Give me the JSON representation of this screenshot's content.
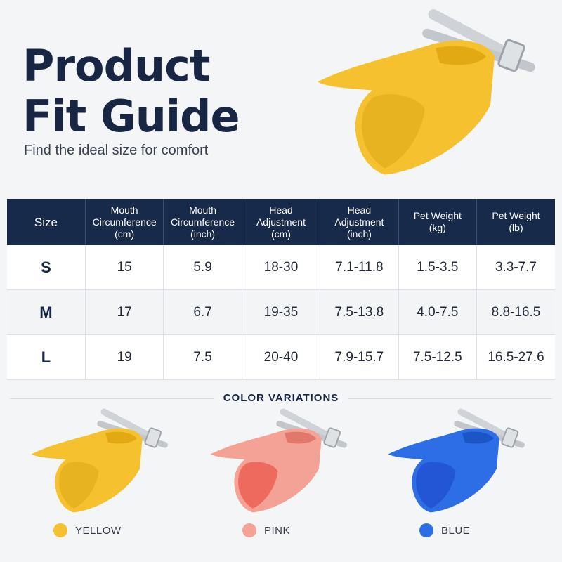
{
  "header": {
    "title_line1": "Product",
    "title_line2": "Fit Guide",
    "subtitle": "Find the ideal size for comfort"
  },
  "table": {
    "headers": [
      [
        "Size"
      ],
      [
        "Mouth",
        "Circumference",
        "(cm)"
      ],
      [
        "Mouth",
        "Circumference",
        "(inch)"
      ],
      [
        "Head",
        "Adjustment",
        "(cm)"
      ],
      [
        "Head",
        "Adjustment",
        "(inch)"
      ],
      [
        "Pet Weight",
        "(kg)"
      ],
      [
        "Pet Weight",
        "(lb)"
      ]
    ],
    "rows": [
      [
        "S",
        "15",
        "5.9",
        "18-30",
        "7.1-11.8",
        "1.5-3.5",
        "3.3-7.7"
      ],
      [
        "M",
        "17",
        "6.7",
        "19-35",
        "7.5-13.8",
        "4.0-7.5",
        "8.8-16.5"
      ],
      [
        "L",
        "19",
        "7.5",
        "20-40",
        "7.9-15.7",
        "7.5-12.5",
        "16.5-27.6"
      ]
    ]
  },
  "colors_section": {
    "title": "COLOR VARIATIONS",
    "variants": [
      {
        "label": "YELLOW",
        "color": "#f6c12e",
        "shade": "#e2a915",
        "inner": "#e8b321"
      },
      {
        "label": "PINK",
        "color": "#f4a295",
        "shade": "#e2776c",
        "inner": "#ee6a5f"
      },
      {
        "label": "BLUE",
        "color": "#2d6ee6",
        "shade": "#1c55c6",
        "inner": "#2356d4"
      }
    ]
  },
  "hero_color": {
    "color": "#f6c12e",
    "shade": "#e2a915",
    "inner": "#e8b321"
  }
}
